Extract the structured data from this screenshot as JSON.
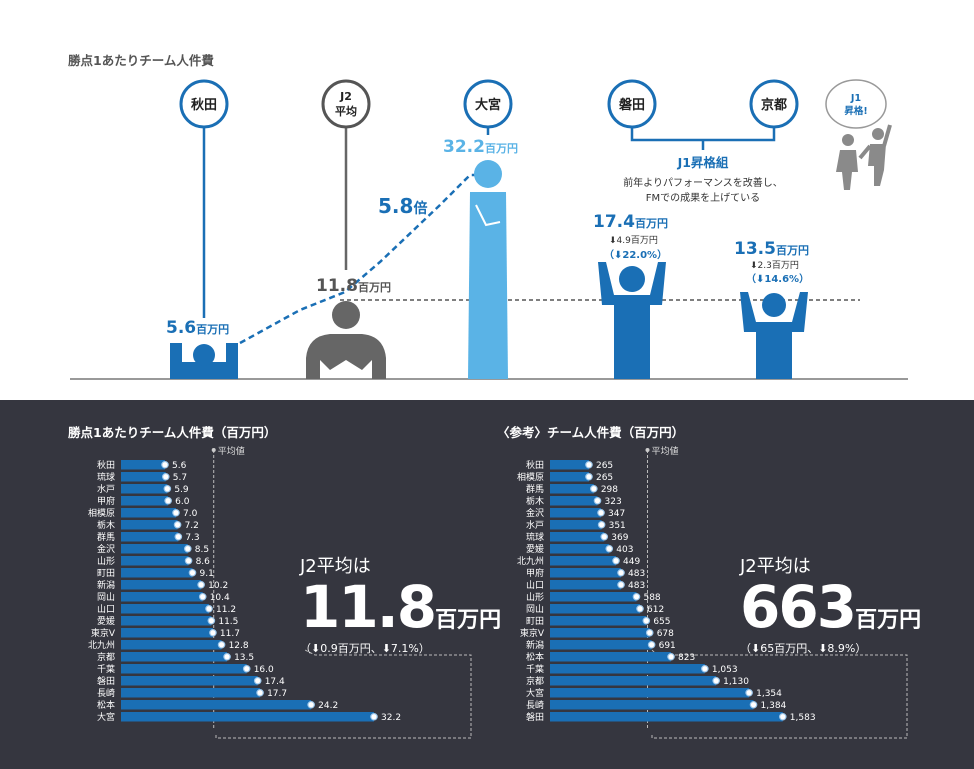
{
  "top": {
    "title": "勝点1あたりチーム人件費",
    "teams": {
      "akita": "秋田",
      "j2avg_line1": "J2",
      "j2avg_line2": "平均",
      "omiya": "大宮",
      "iwata": "磐田",
      "kyoto": "京都"
    },
    "values": {
      "akita": "5.6",
      "j2avg": "11.8",
      "omiya": "32.2",
      "iwata": "17.4",
      "kyoto": "13.5",
      "unit": "百万円"
    },
    "ratio": "5.8",
    "ratio_unit": "倍",
    "iwata_change_abs": "⬇4.9百万円",
    "iwata_change_pct": "（⬇22.0%）",
    "kyoto_change_abs": "⬇2.3百万円",
    "kyoto_change_pct": "（⬇14.6%）",
    "promo_group": "J1昇格組",
    "promo_note_line1": "前年よりパフォーマンスを改善し、",
    "promo_note_line2": "FMでの成果を上げている",
    "bubble_line1": "J1",
    "bubble_line2": "昇格!"
  },
  "left_panel": {
    "title": "勝点1あたりチーム人件費（百万円）",
    "avg_label": "平均値",
    "avg_big_label": "J2平均は",
    "avg_big_value": "11.8",
    "avg_big_unit": "百万円",
    "avg_change": "（⬇0.9百万円、⬇7.1%）"
  },
  "right_panel": {
    "title": "〈参考〉チーム人件費（百万円）",
    "avg_label": "平均値",
    "avg_big_label": "J2平均は",
    "avg_big_value": "663",
    "avg_big_unit": "百万円",
    "avg_change": "（⬇65百万円、⬇8.9%）"
  },
  "colors": {
    "blue": "#1a6fb5",
    "light_blue": "#5ab3e6",
    "gray": "#666666",
    "dark_bg": "#35363f"
  },
  "chart_data": [
    {
      "type": "bar",
      "title": "勝点1あたりチーム人件費（百万円）",
      "orientation": "horizontal",
      "categories": [
        "秋田",
        "琉球",
        "水戸",
        "甲府",
        "相模原",
        "栃木",
        "群馬",
        "金沢",
        "山形",
        "町田",
        "新潟",
        "岡山",
        "山口",
        "愛媛",
        "東京V",
        "北九州",
        "京都",
        "千葉",
        "磐田",
        "長崎",
        "松本",
        "大宮"
      ],
      "values": [
        5.6,
        5.7,
        5.9,
        6.0,
        7.0,
        7.2,
        7.3,
        8.5,
        8.6,
        9.1,
        10.2,
        10.4,
        11.2,
        11.5,
        11.7,
        12.8,
        13.5,
        16.0,
        17.4,
        17.7,
        24.2,
        32.2
      ],
      "average": 11.8,
      "xlim": [
        0,
        35
      ]
    },
    {
      "type": "bar",
      "title": "〈参考〉チーム人件費（百万円）",
      "orientation": "horizontal",
      "categories": [
        "秋田",
        "相模原",
        "群馬",
        "栃木",
        "金沢",
        "水戸",
        "琉球",
        "愛媛",
        "北九州",
        "甲府",
        "山口",
        "山形",
        "岡山",
        "町田",
        "東京V",
        "新潟",
        "松本",
        "千葉",
        "京都",
        "大宮",
        "長崎",
        "磐田"
      ],
      "values": [
        265,
        265,
        298,
        323,
        347,
        351,
        369,
        403,
        449,
        483,
        483,
        588,
        612,
        655,
        678,
        691,
        823,
        1053,
        1130,
        1354,
        1384,
        1583
      ],
      "value_labels": [
        "265",
        "265",
        "298",
        "323",
        "347",
        "351",
        "369",
        "403",
        "449",
        "483",
        "483",
        "588",
        "612",
        "655",
        "678",
        "691",
        "823",
        "1,053",
        "1,130",
        "1,354",
        "1,384",
        "1,583"
      ],
      "average": 663,
      "xlim": [
        0,
        1700
      ]
    }
  ]
}
